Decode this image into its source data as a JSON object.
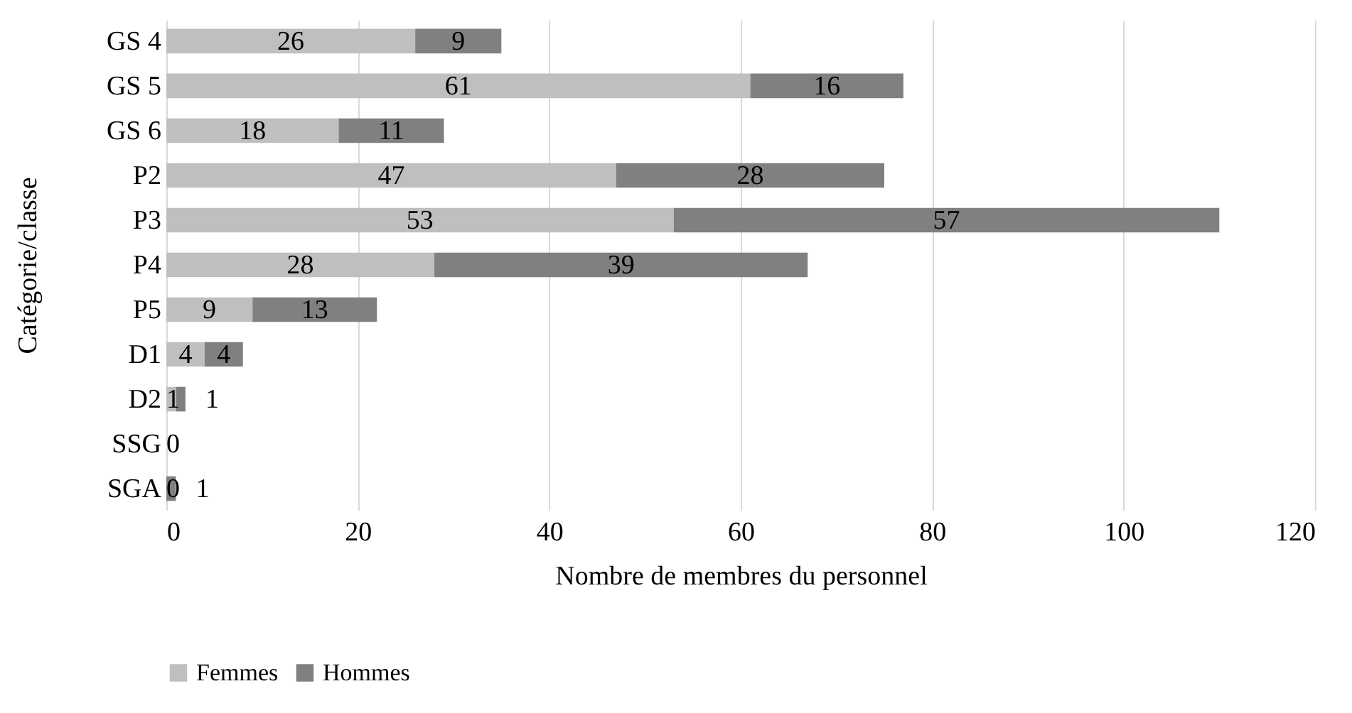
{
  "chart_data": {
    "type": "bar",
    "orientation": "horizontal",
    "stacked": true,
    "xlabel": "Nombre de membres du personnel",
    "ylabel": "Catégorie/classe",
    "categories": [
      "GS 4",
      "GS 5",
      "GS 6",
      "P2",
      "P3",
      "P4",
      "P5",
      "D1",
      "D2",
      "SSG",
      "SGA"
    ],
    "series": [
      {
        "name": "Femmes",
        "color": "#bfbfbf",
        "values": [
          26,
          61,
          18,
          47,
          53,
          28,
          9,
          4,
          1,
          0,
          0
        ],
        "value_labels": [
          "26",
          "61",
          "18",
          "47",
          "53",
          "28",
          "9",
          "4",
          "1",
          "0",
          "0"
        ]
      },
      {
        "name": "Hommes",
        "color": "#808080",
        "values": [
          9,
          16,
          11,
          28,
          57,
          39,
          13,
          4,
          1,
          0,
          1
        ],
        "value_labels": [
          "9",
          "16",
          "11",
          "28",
          "57",
          "39",
          "13",
          "4",
          "1",
          null,
          "1"
        ]
      }
    ],
    "xlim": [
      0,
      120
    ],
    "xticks": [
      0,
      20,
      40,
      60,
      80,
      100,
      120
    ],
    "grid": "x",
    "legend": "bottom"
  }
}
